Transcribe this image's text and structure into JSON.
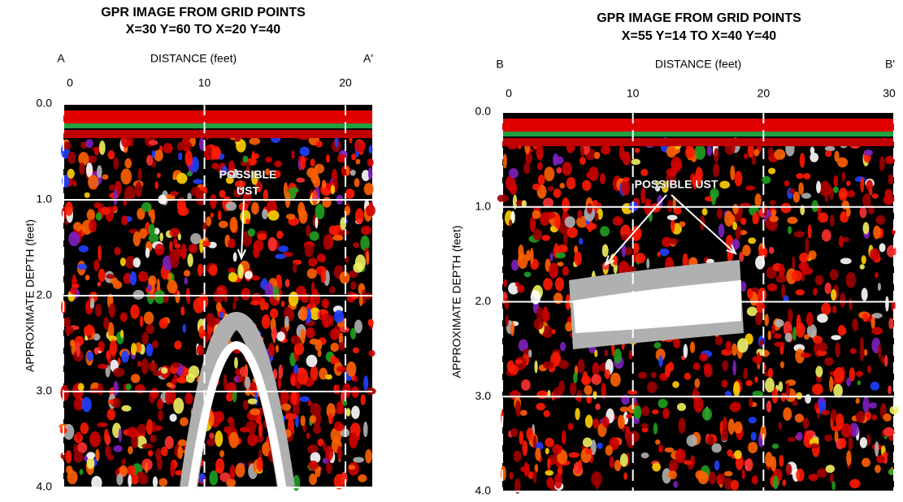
{
  "chart_data": [
    {
      "type": "image",
      "title": "GPR IMAGE FROM GRID POINTS",
      "subtitle": "X=30 Y=60 TO X=20 Y=40",
      "xlabel": "DISTANCE (feet)",
      "ylabel": "APPROXIMATE DEPTH (feet)",
      "start_label": "A",
      "end_label": "A'",
      "xlim": [
        0,
        21.9
      ],
      "xticks": [
        0,
        10,
        20
      ],
      "ylim": [
        0,
        4
      ],
      "yticks": [
        {
          "value": 0,
          "label": "0.0"
        },
        {
          "value": 1,
          "label": "1.0"
        },
        {
          "value": 2,
          "label": "2.0"
        },
        {
          "value": 3,
          "label": "3.0"
        },
        {
          "value": 4,
          "label": "4.0"
        }
      ],
      "annotation": [
        "POSSIBLE",
        "UST"
      ]
    },
    {
      "type": "image",
      "title": "GPR IMAGE FROM GRID POINTS",
      "subtitle": "X=55 Y=14 TO X=40 Y=40",
      "xlabel": "DISTANCE (feet)",
      "ylabel": "APPROXIMATE DEPTH (feet)",
      "start_label": "B",
      "end_label": "B'",
      "xlim": [
        0,
        30
      ],
      "xticks": [
        0,
        10,
        20,
        30
      ],
      "ylim": [
        0,
        4
      ],
      "yticks": [
        {
          "value": 0,
          "label": "0.0"
        },
        {
          "value": 1,
          "label": "1.0"
        },
        {
          "value": 2,
          "label": "2.0"
        },
        {
          "value": 3,
          "label": "3.0"
        },
        {
          "value": 4,
          "label": "4.0"
        }
      ],
      "annotation": [
        "POSSIBLE UST"
      ]
    }
  ]
}
